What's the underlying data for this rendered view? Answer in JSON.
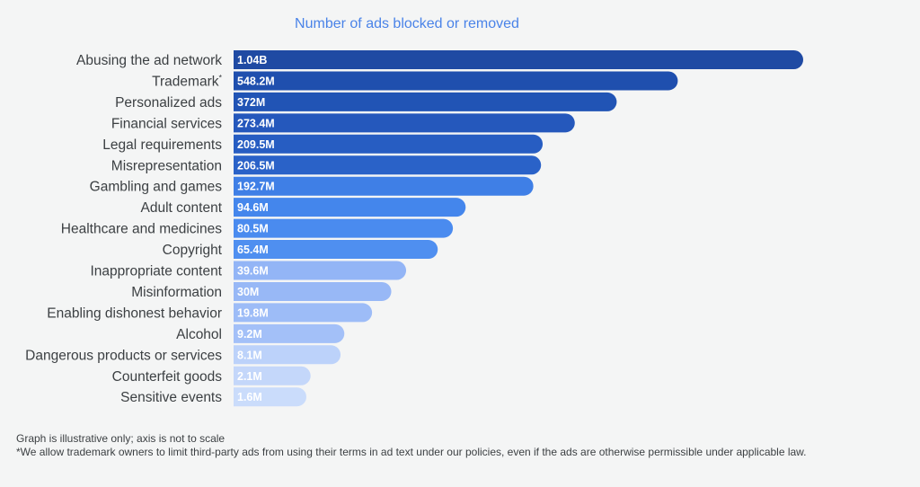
{
  "chart_data": {
    "type": "bar",
    "orientation": "horizontal",
    "title": "Number of ads blocked or removed",
    "categories": [
      "Abusing the ad network",
      "Trademark",
      "Personalized ads",
      "Financial services",
      "Legal requirements",
      "Misrepresentation",
      "Gambling and games",
      "Adult content",
      "Healthcare and medicines",
      "Copyright",
      "Inappropriate content",
      "Misinformation",
      "Enabling dishonest behavior",
      "Alcohol",
      "Dangerous products or services",
      "Counterfeit goods",
      "Sensitive events"
    ],
    "category_superscripts": [
      "",
      "*",
      "",
      "",
      "",
      "",
      "",
      "",
      "",
      "",
      "",
      "",
      "",
      "",
      "",
      "",
      ""
    ],
    "values": [
      1040,
      548.2,
      372,
      273.4,
      209.5,
      206.5,
      192.7,
      94.6,
      80.5,
      65.4,
      39.6,
      30,
      19.8,
      9.2,
      8.1,
      2.1,
      1.6
    ],
    "value_unit": "M",
    "data_labels": [
      "1.04B",
      "548.2M",
      "372M",
      "273.4M",
      "209.5M",
      "206.5M",
      "192.7M",
      "94.6M",
      "80.5M",
      "65.4M",
      "39.6M",
      "30M",
      "19.8M",
      "9.2M",
      "8.1M",
      "2.1M",
      "1.6M"
    ],
    "bar_colors": [
      "#1f4aa3",
      "#1f4fae",
      "#2154b5",
      "#2558bc",
      "#275dc2",
      "#2a62c8",
      "#3f7fe6",
      "#4486ec",
      "#4a8bef",
      "#4f8ff0",
      "#93b5f6",
      "#98b8f6",
      "#9dbcf7",
      "#a3c0f8",
      "#bcd2fa",
      "#c4d7fa",
      "#cadcfb"
    ],
    "xlabel": "",
    "ylabel": "",
    "axis_scale": "not to scale",
    "grid": false,
    "legend": "none"
  },
  "footnotes": {
    "line1": "Graph is illustrative only; axis is not to scale",
    "line2": "*We allow trademark owners to limit third-party ads from using their terms in ad text under our policies, even if the ads are otherwise permissible under applicable law."
  }
}
